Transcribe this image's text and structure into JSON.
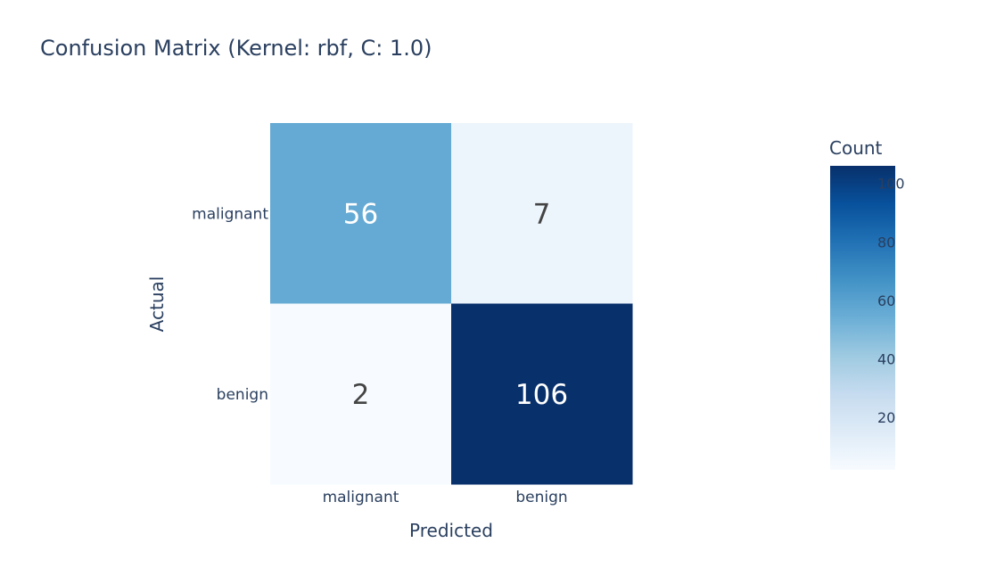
{
  "chart_data": {
    "type": "heatmap",
    "title": "Confusion Matrix (Kernel: rbf, C: 1.0)",
    "xlabel": "Predicted",
    "ylabel": "Actual",
    "x_categories": [
      "malignant",
      "benign"
    ],
    "y_categories": [
      "malignant",
      "benign"
    ],
    "z": [
      [
        56,
        7
      ],
      [
        2,
        106
      ]
    ],
    "colorscale": "Blues",
    "colorscale_stops": [
      "#f7fbff",
      "#deebf7",
      "#c6dbef",
      "#9ecae1",
      "#6baed6",
      "#4292c6",
      "#2171b5",
      "#08519c",
      "#08306b"
    ],
    "zmin": 2,
    "zmax": 106,
    "colorbar": {
      "title": "Count",
      "ticks": [
        20,
        40,
        60,
        80,
        100
      ]
    },
    "annotation_dark_color": "#444444",
    "annotation_light_color": "#ffffff"
  }
}
